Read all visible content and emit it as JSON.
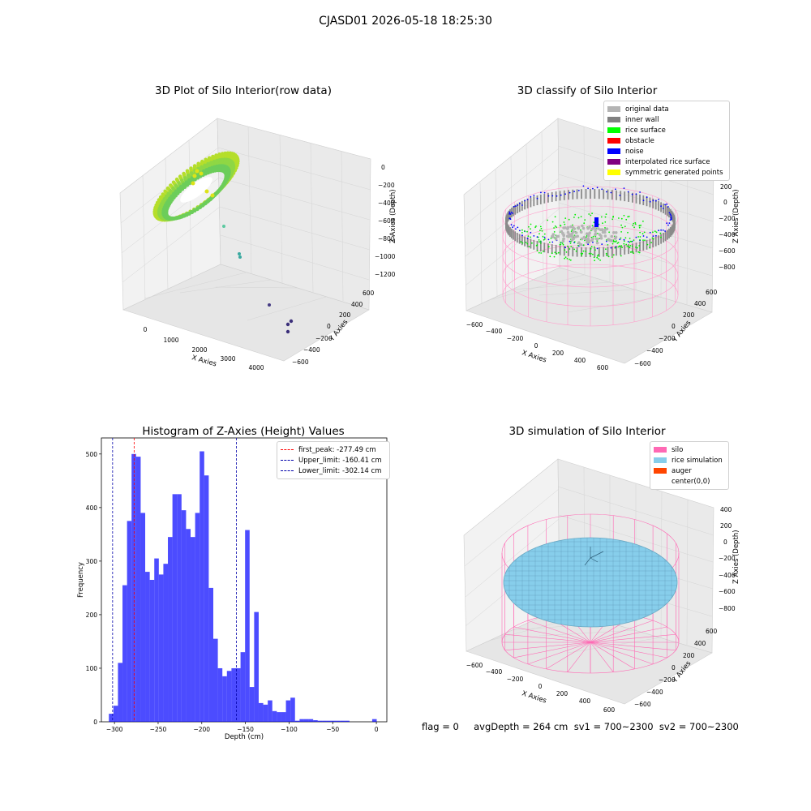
{
  "suptitle": "CJASD01 2026-05-18 18:25:30",
  "panel_raw": {
    "title": "3D Plot of Silo Interior(row data)",
    "x_label": "X Axies",
    "y_label": "Y Axies",
    "z_label": "Z Axies (Depth)",
    "x_ticks": [
      "0",
      "1000",
      "2000",
      "3000",
      "4000"
    ],
    "y_ticks": [
      "600",
      "400",
      "200",
      "0",
      "−200",
      "−400",
      "−600"
    ],
    "z_ticks": [
      "0",
      "−200",
      "−400",
      "−600",
      "−800",
      "−1000",
      "−1200"
    ]
  },
  "panel_classify": {
    "title": "3D classify of Silo Interior",
    "x_label": "X Axies",
    "y_label": "Y Axies",
    "z_label": "Z Axies (Depth)",
    "x_ticks": [
      "−600",
      "−400",
      "−200",
      "0",
      "200",
      "400",
      "600"
    ],
    "y_ticks": [
      "600",
      "400",
      "200",
      "0",
      "−200",
      "−400",
      "−600"
    ],
    "z_ticks": [
      "200",
      "0",
      "−200",
      "−400",
      "−600",
      "−800"
    ],
    "z_partial_tick": "00",
    "legend": [
      {
        "label": "original data",
        "color": "#b4b4b4"
      },
      {
        "label": "inner wall",
        "color": "#808080"
      },
      {
        "label": "rice surface",
        "color": "#00ff00"
      },
      {
        "label": "obstacle",
        "color": "#ff0000"
      },
      {
        "label": "noise",
        "color": "#0000ff"
      },
      {
        "label": "interpolated rice surface",
        "color": "#800080"
      },
      {
        "label": "symmetric generated points",
        "color": "#ffff00"
      }
    ]
  },
  "panel_sim": {
    "title": "3D simulation of Silo Interior",
    "x_label": "X Axies",
    "y_label": "Y Axies",
    "z_label": "Z Axies (Depth)",
    "x_ticks": [
      "−600",
      "−400",
      "−200",
      "0",
      "200",
      "400",
      "600"
    ],
    "y_ticks": [
      "600",
      "400",
      "200",
      "0",
      "−200",
      "−400",
      "−600"
    ],
    "z_ticks": [
      "400",
      "200",
      "0",
      "−200",
      "−400",
      "−600",
      "−800"
    ],
    "legend": [
      {
        "label": "silo",
        "color": "#ff69b4"
      },
      {
        "label": "rice simulation",
        "color": "#87ceeb"
      },
      {
        "label": "auger",
        "color": "#ff4500"
      },
      {
        "label": "center(0,0)",
        "color": "#ffffff"
      }
    ]
  },
  "footer": "flag = 0     avgDepth = 264 cm  sv1 = 700~2300  sv2 = 700~2300",
  "chart_data": {
    "type": "bar",
    "title": "Histogram of Z-Axies (Height) Values",
    "xlabel": "Depth (cm)",
    "ylabel": "Frequency",
    "xlim": [
      -315,
      12
    ],
    "ylim": [
      0,
      530
    ],
    "x_ticks": [
      -300,
      -250,
      -200,
      -150,
      -100,
      -50,
      0
    ],
    "x_tick_labels": [
      "−300",
      "−250",
      "−200",
      "−150",
      "−100",
      "−50",
      "0"
    ],
    "y_ticks": [
      0,
      100,
      200,
      300,
      400,
      500
    ],
    "bar_color": "#0000ff",
    "bin_edges": [
      -306.4,
      -301.2,
      -296.0,
      -290.8,
      -285.6,
      -280.4,
      -275.2,
      -270.0,
      -264.8,
      -259.6,
      -254.4,
      -249.2,
      -244.0,
      -238.8,
      -233.6,
      -228.4,
      -223.2,
      -218.0,
      -212.8,
      -207.6,
      -202.4,
      -197.2,
      -192.0,
      -186.8,
      -181.6,
      -176.4,
      -171.2,
      -166.0,
      -160.8,
      -155.6,
      -150.4,
      -145.2,
      -140.0,
      -134.8,
      -129.6,
      -124.4,
      -119.2,
      -114.0,
      -108.8,
      -103.6,
      -98.4,
      -93.2,
      -88.0,
      -82.8,
      -77.6,
      -72.4,
      -67.2,
      -62.0,
      -56.8,
      -51.6,
      -46.4,
      -41.2,
      -36.0,
      -30.8,
      -25.6,
      -20.4,
      -15.2,
      -10.0,
      -4.8,
      0.4
    ],
    "counts": [
      15,
      30,
      110,
      255,
      375,
      500,
      495,
      390,
      280,
      265,
      305,
      275,
      295,
      345,
      425,
      425,
      395,
      360,
      345,
      390,
      505,
      460,
      250,
      155,
      100,
      85,
      95,
      100,
      100,
      130,
      358,
      65,
      205,
      35,
      32,
      40,
      20,
      18,
      18,
      40,
      45,
      2,
      5,
      5,
      5,
      3,
      2,
      2,
      2,
      2,
      2,
      2,
      2,
      0,
      0,
      0,
      0,
      0,
      5
    ],
    "reference_lines": [
      {
        "name": "first_peak",
        "label": "first_peak: -277.49 cm",
        "x": -277.49,
        "color": "#ff0000"
      },
      {
        "name": "upper_limit",
        "label": "Upper_limit: -160.41 cm",
        "x": -160.41,
        "color": "#0000aa"
      },
      {
        "name": "lower_limit",
        "label": "Lower_limit: -302.14 cm",
        "x": -302.14,
        "color": "#0000aa"
      }
    ],
    "legend_position": "upper right"
  }
}
